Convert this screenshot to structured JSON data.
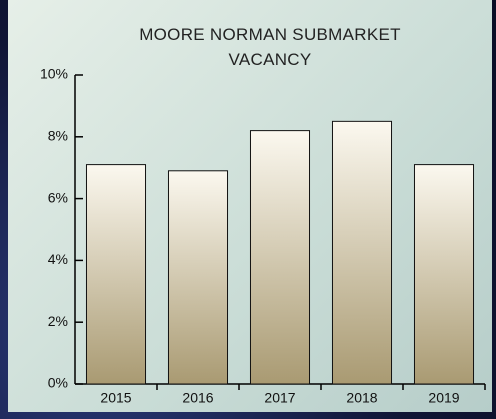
{
  "chart_data": {
    "type": "bar",
    "title": "MOORE  NORMAN SUBMARKET VACANCY",
    "categories": [
      "2015",
      "2016",
      "2017",
      "2018",
      "2019"
    ],
    "values": [
      7.1,
      6.9,
      8.2,
      8.5,
      7.1
    ],
    "ylim": [
      0,
      10
    ],
    "yticks": [
      {
        "value": 0,
        "label": "0%"
      },
      {
        "value": 2,
        "label": "2%"
      },
      {
        "value": 4,
        "label": "4%"
      },
      {
        "value": 6,
        "label": "6%"
      },
      {
        "value": 8,
        "label": "8%"
      },
      {
        "value": 10,
        "label": "10%"
      }
    ],
    "grid": false
  }
}
